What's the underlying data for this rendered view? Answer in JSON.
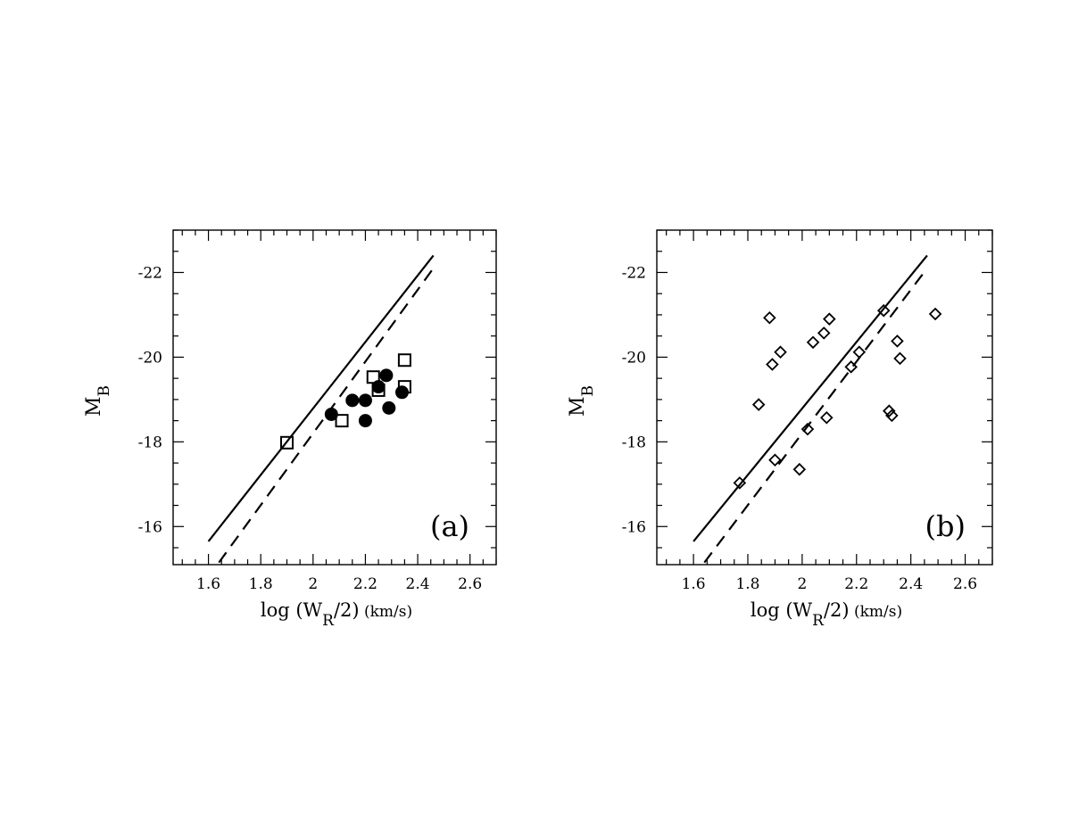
{
  "chart_data": [
    {
      "type": "scatter",
      "panel_label": "(a)",
      "xlabel": "log (W_R/2) (km/s)",
      "ylabel": "M_B",
      "xlim": [
        1.465,
        2.7
      ],
      "ylim": [
        -15.1,
        -23.0
      ],
      "y_inverted": true,
      "xticks": [
        1.6,
        1.8,
        2.0,
        2.2,
        2.4,
        2.6
      ],
      "xtick_labels": [
        "1.6",
        "1.8",
        "2",
        "2.2",
        "2.4",
        "2.6"
      ],
      "yticks": [
        -16,
        -18,
        -20,
        -22
      ],
      "ytick_labels": [
        "-16",
        "-18",
        "-20",
        "-22"
      ],
      "lines": [
        {
          "style": "solid",
          "x": [
            1.6,
            2.46
          ],
          "y": [
            -15.65,
            -22.4
          ]
        },
        {
          "style": "dashed",
          "x": [
            1.64,
            2.46
          ],
          "y": [
            -15.15,
            -22.1
          ]
        }
      ],
      "series": [
        {
          "marker": "filled-circle",
          "x": [
            2.07,
            2.15,
            2.2,
            2.2,
            2.25,
            2.28,
            2.29,
            2.34
          ],
          "y": [
            -18.65,
            -18.98,
            -18.98,
            -18.5,
            -19.3,
            -19.57,
            -18.8,
            -19.17
          ]
        },
        {
          "marker": "open-square",
          "x": [
            1.9,
            2.11,
            2.23,
            2.25,
            2.35,
            2.35
          ],
          "y": [
            -17.98,
            -18.5,
            -19.53,
            -19.22,
            -19.93,
            -19.3
          ]
        }
      ]
    },
    {
      "type": "scatter",
      "panel_label": "(b)",
      "xlabel": "log (W_R/2) (km/s)",
      "ylabel": "M_B",
      "xlim": [
        1.465,
        2.7
      ],
      "ylim": [
        -15.1,
        -23.0
      ],
      "y_inverted": true,
      "xticks": [
        1.6,
        1.8,
        2.0,
        2.2,
        2.4,
        2.6
      ],
      "xtick_labels": [
        "1.6",
        "1.8",
        "2",
        "2.2",
        "2.4",
        "2.6"
      ],
      "yticks": [
        -16,
        -18,
        -20,
        -22
      ],
      "ytick_labels": [
        "-16",
        "-18",
        "-20",
        "-22"
      ],
      "lines": [
        {
          "style": "solid",
          "x": [
            1.6,
            2.46
          ],
          "y": [
            -15.65,
            -22.4
          ]
        },
        {
          "style": "dashed",
          "x": [
            1.64,
            2.46
          ],
          "y": [
            -15.15,
            -22.1
          ]
        }
      ],
      "series": [
        {
          "marker": "open-diamond",
          "x": [
            1.77,
            1.84,
            1.88,
            1.89,
            1.92,
            1.9,
            1.99,
            2.02,
            2.04,
            2.08,
            2.09,
            2.1,
            2.18,
            2.21,
            2.3,
            2.32,
            2.33,
            2.35,
            2.36,
            2.49
          ],
          "y": [
            -17.03,
            -18.88,
            -20.93,
            -19.83,
            -20.12,
            -17.57,
            -17.35,
            -18.3,
            -20.35,
            -20.57,
            -18.57,
            -20.9,
            -19.77,
            -20.12,
            -21.1,
            -18.73,
            -18.62,
            -20.38,
            -19.97,
            -21.02
          ]
        }
      ]
    }
  ]
}
